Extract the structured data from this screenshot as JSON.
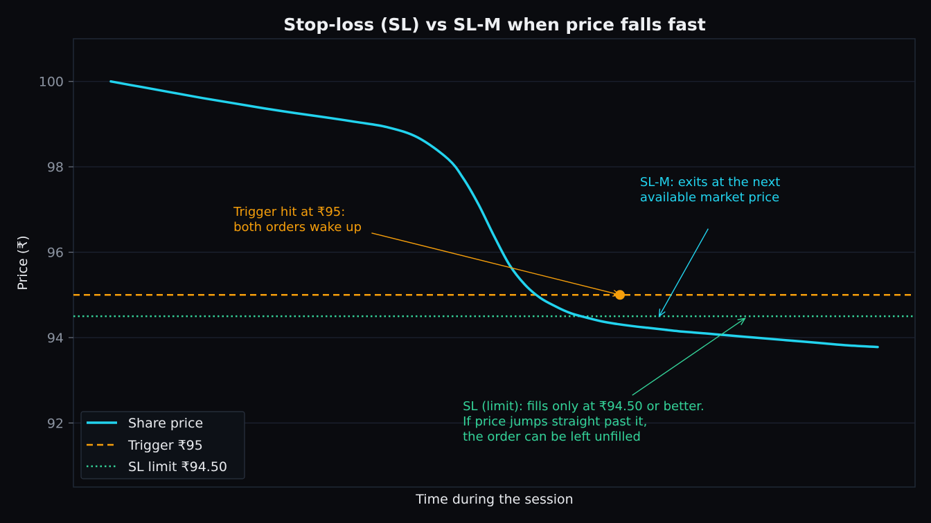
{
  "chart_data": {
    "type": "line",
    "title": "Stop-loss (SL) vs SL-M when price falls fast",
    "xlabel": "Time during the session",
    "ylabel": "Price (₹)",
    "ylim": [
      90.5,
      101
    ],
    "yticks": [
      92,
      94,
      96,
      98,
      100
    ],
    "grid": true,
    "legend_position": "bottom-left",
    "series": [
      {
        "name": "Share price",
        "color": "#22d3ee",
        "style": "solid",
        "x": [
          0.0,
          0.04,
          0.08,
          0.12,
          0.16,
          0.2,
          0.24,
          0.28,
          0.32,
          0.36,
          0.4,
          0.44,
          0.46,
          0.48,
          0.5,
          0.52,
          0.54,
          0.56,
          0.58,
          0.6,
          0.62,
          0.64,
          0.66,
          0.68,
          0.7,
          0.72,
          0.74,
          0.76,
          0.78,
          0.8,
          0.84,
          0.88,
          0.92,
          0.96,
          1.0
        ],
        "y": [
          100.0,
          99.87,
          99.74,
          99.61,
          99.49,
          99.37,
          99.26,
          99.16,
          99.05,
          98.93,
          98.69,
          98.18,
          97.72,
          97.1,
          96.37,
          95.7,
          95.24,
          94.93,
          94.73,
          94.57,
          94.47,
          94.38,
          94.32,
          94.27,
          94.23,
          94.19,
          94.15,
          94.12,
          94.09,
          94.06,
          94.0,
          93.94,
          93.88,
          93.82,
          93.78
        ]
      },
      {
        "name": "Trigger ₹95",
        "color": "#f59e0b",
        "style": "dashed",
        "y_const": 95
      },
      {
        "name": "SL limit ₹94.50",
        "color": "#34d399",
        "style": "dotted",
        "y_const": 94.5
      }
    ],
    "marker": {
      "x": 0.664,
      "y": 95.0,
      "color": "#f59e0b"
    },
    "annotations": [
      {
        "lines": [
          "Trigger hit at ₹95:",
          "both orders wake up"
        ],
        "color": "#f59e0b",
        "text_x": 0.16,
        "text_y": 96.85,
        "arrow_from_x": 0.34,
        "arrow_from_y": 96.45,
        "arrow_to_x": 0.664,
        "arrow_to_y": 95.0
      },
      {
        "lines": [
          "SL-M: exits at the next",
          "available market price"
        ],
        "color": "#22d3ee",
        "text_x": 0.69,
        "text_y": 97.55,
        "arrow_from_x": 0.779,
        "arrow_from_y": 96.55,
        "arrow_to_x": 0.715,
        "arrow_to_y": 94.5
      },
      {
        "lines": [
          "SL (limit): fills only at ₹94.50 or better.",
          "If price jumps straight past it,",
          "the order can be left unfilled"
        ],
        "color": "#34d399",
        "text_x": 0.459,
        "text_y": 92.3,
        "arrow_from_x": 0.68,
        "arrow_from_y": 92.65,
        "arrow_to_x": 0.827,
        "arrow_to_y": 94.45
      }
    ]
  }
}
